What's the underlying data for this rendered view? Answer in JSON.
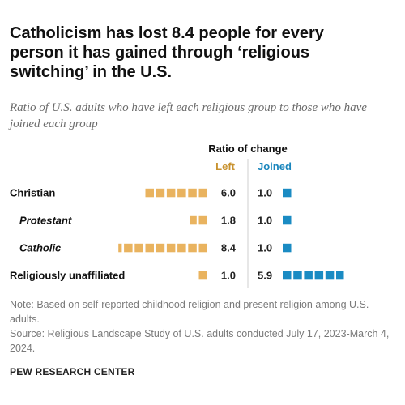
{
  "title": "Catholicism has lost 8.4 people for every person it has gained through ‘religious switching’ in the U.S.",
  "subtitle": "Ratio of U.S. adults who have left each religious group to those who have joined each group",
  "note": "Note: Based on self-reported childhood religion and present religion among U.S. adults.",
  "source": "Source: Religious Landscape Study of U.S. adults conducted July 17, 2023-March 4, 2024.",
  "brand": "PEW RESEARCH CENTER",
  "colors": {
    "left": "#e9b35f",
    "joined": "#1a8bc3",
    "divider": "#cfcfcf",
    "left_label": "#c8922f",
    "joined_label": "#1a86bd"
  },
  "chart_data": {
    "type": "bar",
    "title": "Ratio of change",
    "categories": [
      "Christian",
      "Protestant",
      "Catholic",
      "Religiously unaffiliated"
    ],
    "category_italic": [
      false,
      true,
      true,
      false
    ],
    "series": [
      {
        "name": "Left",
        "values": [
          6.0,
          1.8,
          8.4,
          1.0
        ],
        "labels": [
          "6.0",
          "1.8",
          "8.4",
          "1.0"
        ]
      },
      {
        "name": "Joined",
        "values": [
          1.0,
          1.0,
          1.0,
          5.9
        ],
        "labels": [
          "1.0",
          "1.0",
          "1.0",
          "5.9"
        ]
      }
    ]
  }
}
